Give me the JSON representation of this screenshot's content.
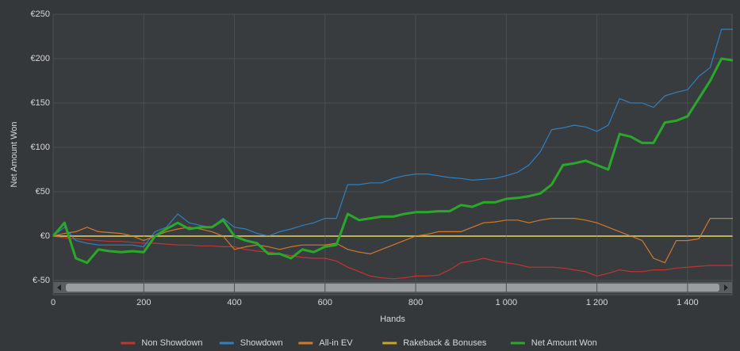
{
  "chart_data": {
    "type": "line",
    "y_label": "Net Amount Won",
    "x_label": "Hands",
    "xlim": [
      0,
      1500
    ],
    "ylim": [
      -50,
      250
    ],
    "xticks": [
      0,
      200,
      400,
      600,
      800,
      {
        "value": 1000,
        "label": "1 000"
      },
      {
        "value": 1200,
        "label": "1 200"
      },
      {
        "value": 1400,
        "label": "1 400"
      }
    ],
    "yticks": [
      {
        "value": -50,
        "label": "€-50"
      },
      {
        "value": 0,
        "label": "€0"
      },
      {
        "value": 50,
        "label": "€50"
      },
      {
        "value": 100,
        "label": "€100"
      },
      {
        "value": 150,
        "label": "€150"
      },
      {
        "value": 200,
        "label": "€200"
      },
      {
        "value": 250,
        "label": "€250"
      }
    ],
    "grid": true,
    "legend": "bottom",
    "x": [
      0,
      25,
      50,
      75,
      100,
      125,
      150,
      175,
      200,
      225,
      250,
      275,
      300,
      325,
      350,
      375,
      400,
      425,
      450,
      475,
      500,
      525,
      550,
      575,
      600,
      625,
      650,
      675,
      700,
      725,
      750,
      775,
      800,
      825,
      850,
      875,
      900,
      925,
      950,
      975,
      1000,
      1025,
      1050,
      1075,
      1100,
      1125,
      1150,
      1175,
      1200,
      1225,
      1250,
      1275,
      1300,
      1325,
      1350,
      1375,
      1400,
      1425,
      1450,
      1475,
      1500
    ],
    "series": [
      {
        "name": "Non Showdown",
        "color": "#c23434",
        "values": [
          0,
          -2,
          -3,
          -4,
          -5,
          -6,
          -6,
          -7,
          -8,
          -8,
          -9,
          -10,
          -10,
          -11,
          -11,
          -12,
          -12,
          -15,
          -17,
          -18,
          -20,
          -22,
          -24,
          -25,
          -25,
          -28,
          -35,
          -40,
          -45,
          -47,
          -48,
          -47,
          -45,
          -45,
          -44,
          -38,
          -30,
          -28,
          -25,
          -28,
          -30,
          -32,
          -35,
          -35,
          -35,
          -36,
          -38,
          -40,
          -45,
          -42,
          -38,
          -40,
          -40,
          -38,
          -38,
          -36,
          -35,
          -34,
          -33,
          -33,
          -33
        ]
      },
      {
        "name": "Showdown",
        "color": "#2f80c0",
        "values": [
          0,
          10,
          -5,
          -8,
          -10,
          -10,
          -10,
          -10,
          -12,
          5,
          10,
          25,
          15,
          12,
          10,
          20,
          10,
          8,
          3,
          0,
          5,
          8,
          12,
          15,
          20,
          20,
          58,
          58,
          60,
          60,
          65,
          68,
          70,
          70,
          68,
          66,
          65,
          63,
          64,
          65,
          68,
          72,
          80,
          95,
          120,
          122,
          125,
          123,
          118,
          125,
          155,
          150,
          150,
          145,
          158,
          162,
          165,
          180,
          190,
          233,
          233
        ]
      },
      {
        "name": "All-in EV",
        "color": "#d2782a",
        "values": [
          0,
          3,
          5,
          10,
          5,
          4,
          3,
          0,
          -5,
          0,
          5,
          8,
          10,
          8,
          5,
          0,
          -15,
          -12,
          -10,
          -12,
          -15,
          -12,
          -10,
          -10,
          -10,
          -8,
          -15,
          -18,
          -20,
          -15,
          -10,
          -5,
          0,
          2,
          5,
          5,
          5,
          10,
          15,
          16,
          18,
          18,
          15,
          18,
          20,
          20,
          20,
          18,
          15,
          10,
          5,
          0,
          -5,
          -25,
          -30,
          -5,
          -5,
          -3,
          20,
          20,
          20
        ]
      },
      {
        "name": "Rakeback & Bonuses",
        "color": "#c8a626",
        "values": [
          0,
          0,
          0,
          0,
          0,
          0,
          0,
          0,
          0,
          0,
          0,
          0,
          0,
          0,
          0,
          0,
          0,
          0,
          0,
          0,
          0,
          0,
          0,
          0,
          0,
          0,
          0,
          0,
          0,
          0,
          0,
          0,
          0,
          0,
          0,
          0,
          0,
          0,
          0,
          0,
          0,
          0,
          0,
          0,
          0,
          0,
          0,
          0,
          0,
          0,
          0,
          0,
          0,
          0,
          0,
          0,
          0,
          0,
          0,
          0,
          0
        ]
      },
      {
        "name": "Net Amount Won",
        "color": "#2aa82a",
        "values": [
          0,
          15,
          -25,
          -30,
          -15,
          -17,
          -18,
          -17,
          -18,
          0,
          8,
          15,
          8,
          10,
          10,
          18,
          0,
          -5,
          -8,
          -20,
          -20,
          -25,
          -15,
          -18,
          -12,
          -10,
          25,
          18,
          20,
          22,
          22,
          25,
          27,
          27,
          28,
          28,
          35,
          33,
          38,
          38,
          42,
          43,
          45,
          48,
          58,
          80,
          82,
          85,
          80,
          75,
          115,
          112,
          105,
          105,
          128,
          130,
          135,
          155,
          175,
          200,
          198
        ]
      }
    ]
  }
}
